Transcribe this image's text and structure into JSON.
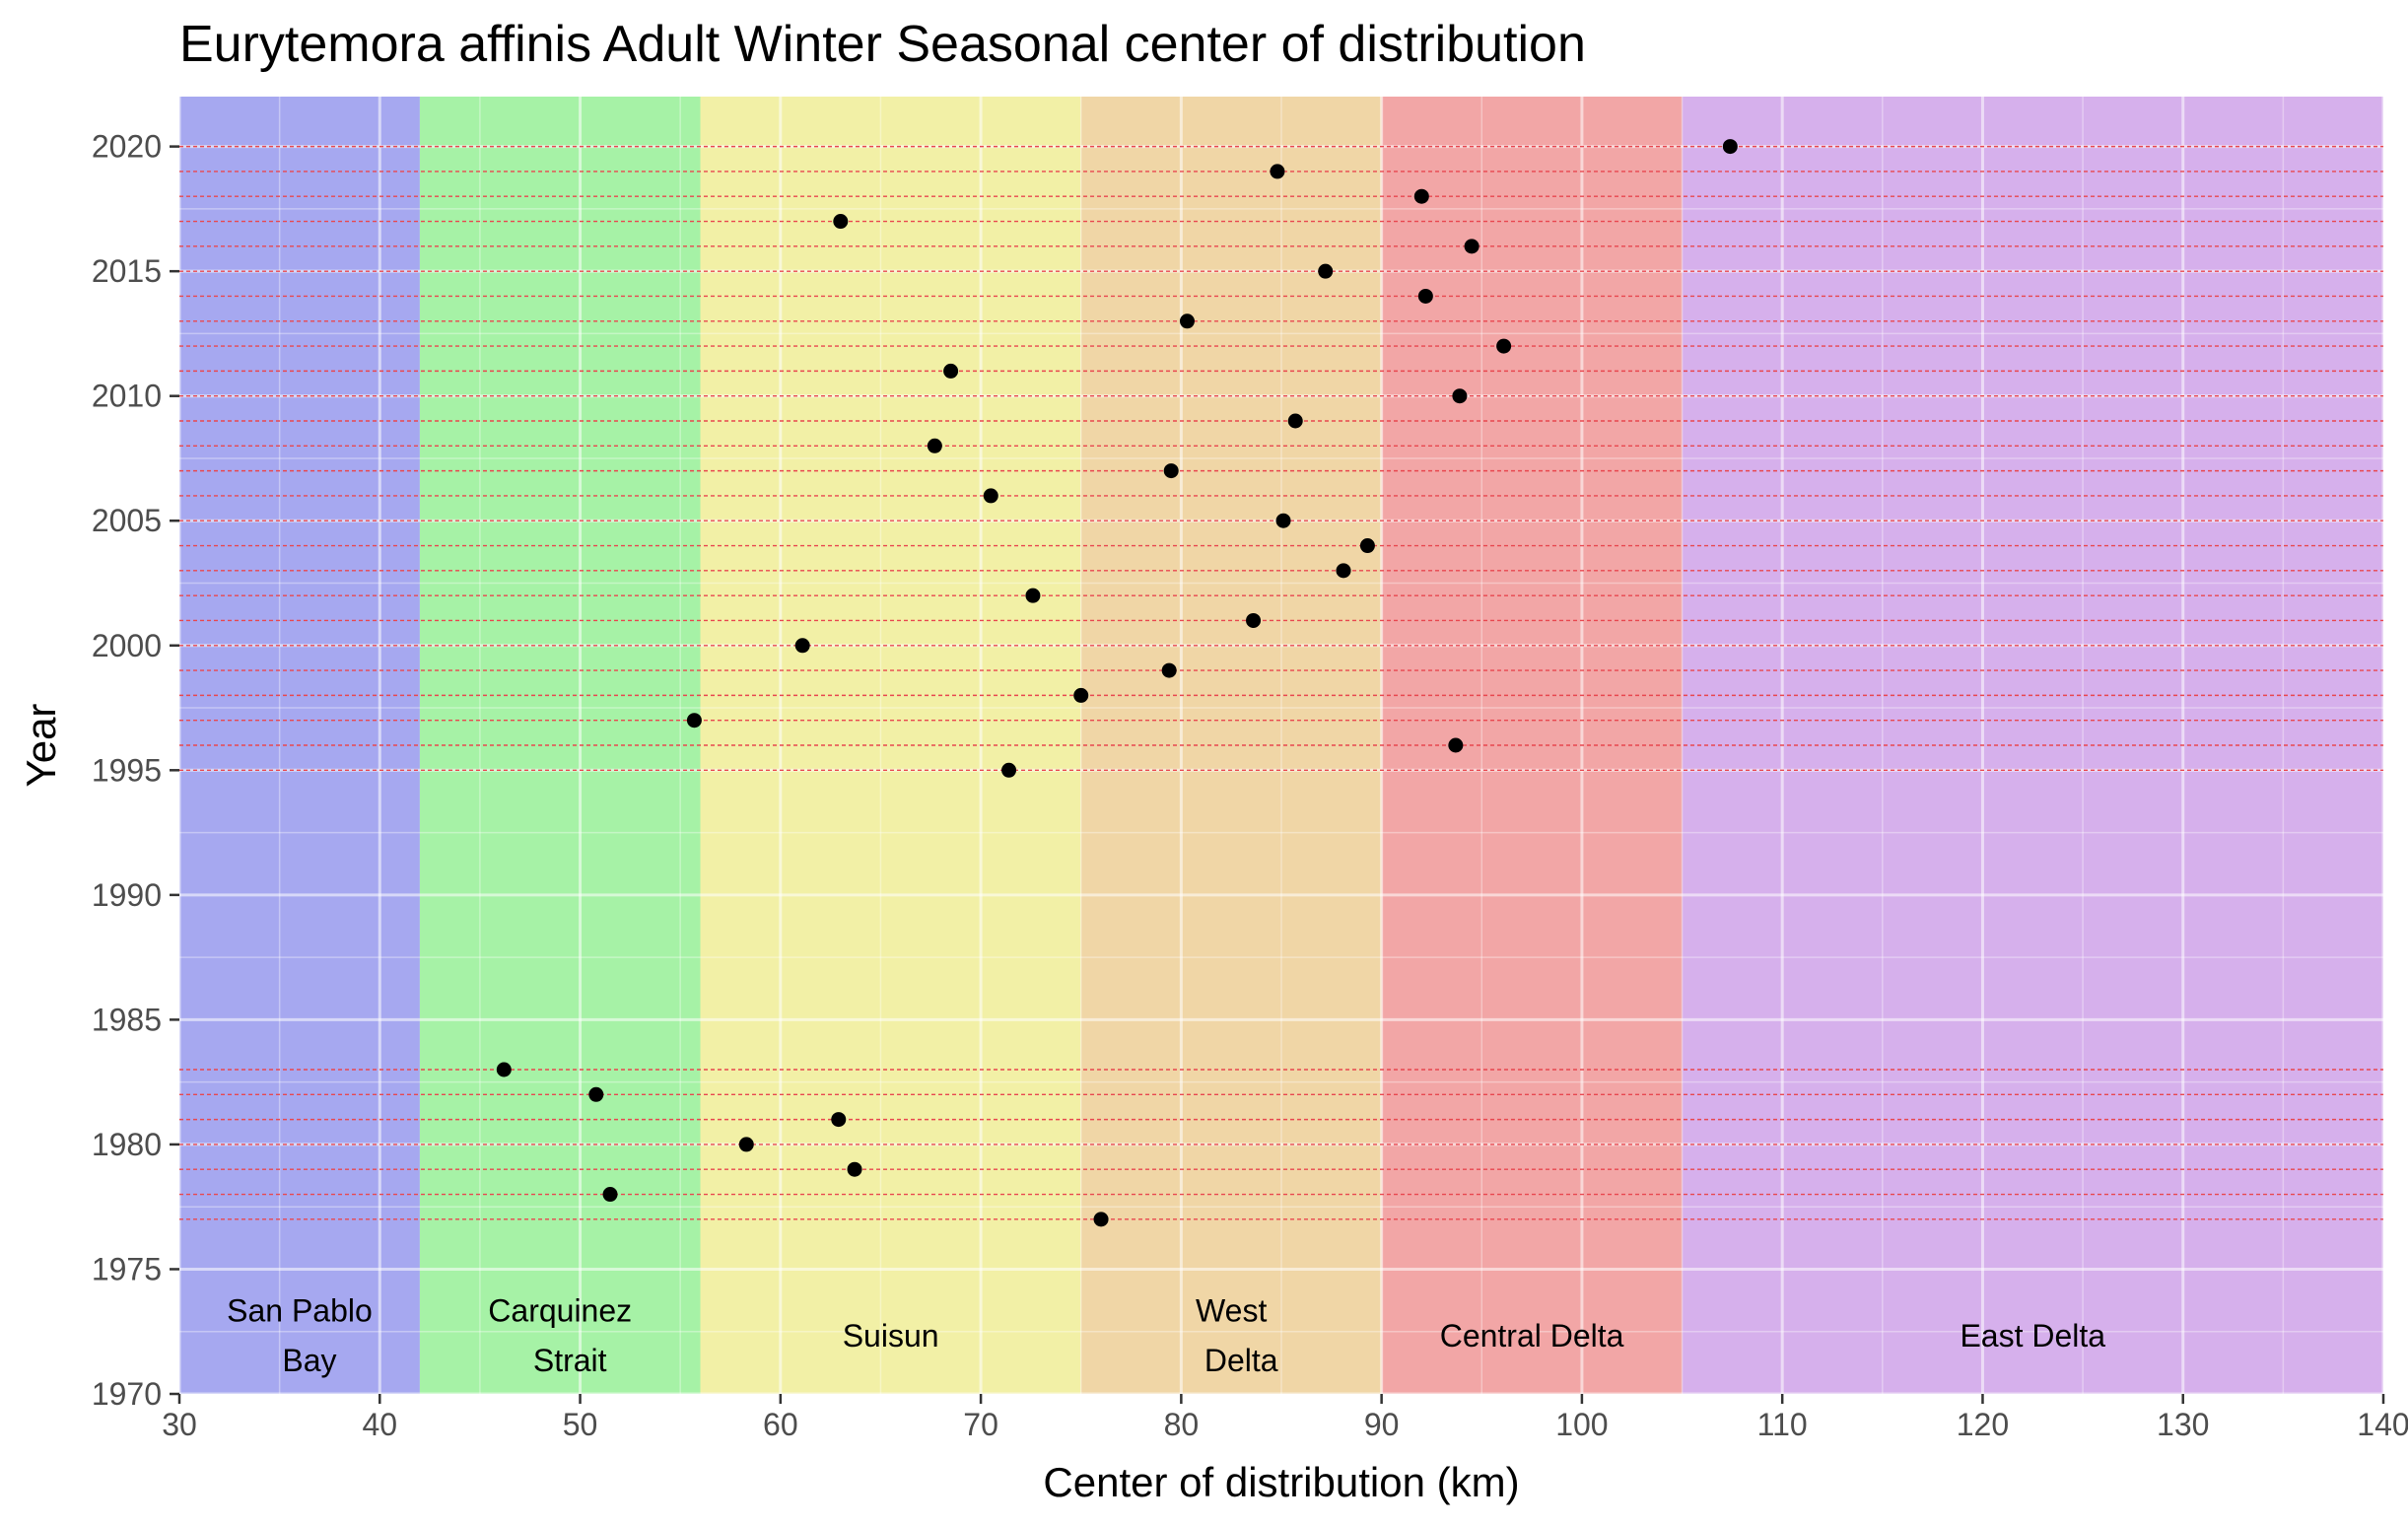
{
  "chart_data": {
    "type": "scatter",
    "title": "Eurytemora affinis Adult Winter Seasonal center of distribution",
    "xlabel": "Center of distribution (km)",
    "ylabel": "Year",
    "xlim": [
      30,
      140
    ],
    "ylim": [
      1970,
      2022
    ],
    "x_ticks": [
      "30",
      "40",
      "50",
      "60",
      "70",
      "80",
      "90",
      "100",
      "110",
      "120",
      "130",
      "140"
    ],
    "y_ticks": [
      "1970",
      "1975",
      "1980",
      "1985",
      "1990",
      "1995",
      "2000",
      "2005",
      "2010",
      "2015",
      "2020"
    ],
    "grid": true,
    "colors": {
      "point": "#000000",
      "year_line": "#e8474f",
      "grid_major": "#ffffff",
      "tick_label": "#4d4d4d"
    },
    "regions": [
      {
        "label": [
          "San Pablo",
          "Bay"
        ],
        "from": 30,
        "to": 42,
        "color": "#a6a8f0"
      },
      {
        "label": [
          "Carquinez",
          "Strait"
        ],
        "from": 42,
        "to": 56,
        "color": "#a6f2a6"
      },
      {
        "label": [
          "Suisun"
        ],
        "from": 56,
        "to": 75,
        "color": "#f2f0a6"
      },
      {
        "label": [
          "West",
          "Delta"
        ],
        "from": 75,
        "to": 90,
        "color": "#f0d6a6"
      },
      {
        "label": [
          "Central Delta"
        ],
        "from": 90,
        "to": 105,
        "color": "#f2a6a6"
      },
      {
        "label": [
          "East Delta"
        ],
        "from": 105,
        "to": 140,
        "color": "#d6b0ec"
      }
    ],
    "points": [
      {
        "year": 1977,
        "km": 76.0
      },
      {
        "year": 1978,
        "km": 51.5
      },
      {
        "year": 1979,
        "km": 63.7
      },
      {
        "year": 1980,
        "km": 58.3
      },
      {
        "year": 1981,
        "km": 62.9
      },
      {
        "year": 1982,
        "km": 50.8
      },
      {
        "year": 1983,
        "km": 46.2
      },
      {
        "year": 1995,
        "km": 71.4
      },
      {
        "year": 1996,
        "km": 93.7
      },
      {
        "year": 1997,
        "km": 55.7
      },
      {
        "year": 1998,
        "km": 75.0
      },
      {
        "year": 1999,
        "km": 79.4
      },
      {
        "year": 2000,
        "km": 61.1
      },
      {
        "year": 2001,
        "km": 83.6
      },
      {
        "year": 2002,
        "km": 72.6
      },
      {
        "year": 2003,
        "km": 88.1
      },
      {
        "year": 2004,
        "km": 89.3
      },
      {
        "year": 2005,
        "km": 85.1
      },
      {
        "year": 2006,
        "km": 70.5
      },
      {
        "year": 2007,
        "km": 79.5
      },
      {
        "year": 2008,
        "km": 67.7
      },
      {
        "year": 2009,
        "km": 85.7
      },
      {
        "year": 2010,
        "km": 93.9
      },
      {
        "year": 2011,
        "km": 68.5
      },
      {
        "year": 2012,
        "km": 96.1
      },
      {
        "year": 2013,
        "km": 80.3
      },
      {
        "year": 2014,
        "km": 92.2
      },
      {
        "year": 2015,
        "km": 87.2
      },
      {
        "year": 2016,
        "km": 94.5
      },
      {
        "year": 2017,
        "km": 63.0
      },
      {
        "year": 2018,
        "km": 92.0
      },
      {
        "year": 2019,
        "km": 84.8
      },
      {
        "year": 2020,
        "km": 107.4
      }
    ]
  }
}
